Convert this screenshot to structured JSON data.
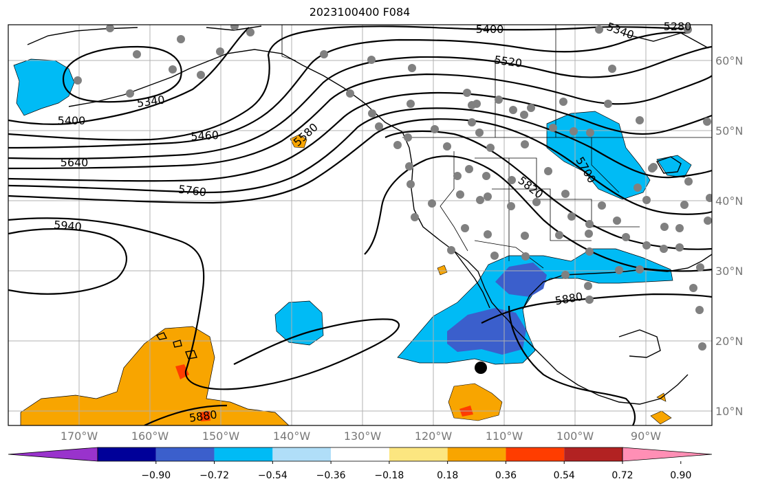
{
  "title": "2023100400 F084",
  "latitude_labels": [
    "60°N",
    "50°N",
    "40°N",
    "30°N",
    "20°N",
    "10°N"
  ],
  "longitude_labels": [
    "170°W",
    "160°W",
    "150°W",
    "140°W",
    "130°W",
    "120°W",
    "110°W",
    "100°W",
    "90°W"
  ],
  "contour_labels": [
    "5400",
    "5340",
    "5280",
    "5520",
    "5340",
    "5400",
    "5460",
    "5640",
    "5580",
    "5760",
    "5700",
    "5820",
    "5940",
    "5880",
    "5880"
  ],
  "colorbar": {
    "tick_labels": [
      "−0.90",
      "−0.72",
      "−0.54",
      "−0.36",
      "−0.18",
      "0.18",
      "0.36",
      "0.54",
      "0.72",
      "0.90"
    ],
    "colors": [
      "#9933cc",
      "#000099",
      "#3b5fcc",
      "#00bbf5",
      "#b0def8",
      "#ffffff",
      "#fce680",
      "#f8a500",
      "#ff3d00",
      "#b22222",
      "#ff8fb5"
    ]
  },
  "colors": {
    "negative_moderate": "#00bbf5",
    "negative_strong": "#3b5fcc",
    "positive_moderate": "#f8a500",
    "positive_strong": "#ff3d00",
    "station_dot": "#808080",
    "grid": "#b0b0b0"
  }
}
